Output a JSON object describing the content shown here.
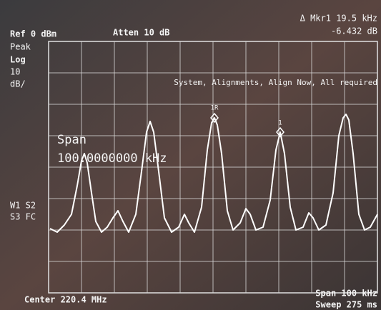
{
  "header": {
    "ref": "Ref 0 dBm",
    "atten": "Atten 10 dB",
    "marker_delta": "Δ Mkr1 19.5 kHz",
    "marker_level": "-6.432 dB"
  },
  "side": {
    "detector": "Peak",
    "scale": "Log",
    "scale_value": "10",
    "scale_unit": "dB/",
    "trace_state_1": "W1 S2",
    "trace_state_2": "S3 FC"
  },
  "message": "System, Alignments, Align Now, All required",
  "span_entry": {
    "label": "Span",
    "value": "100.0000000 kHz"
  },
  "markers": [
    "1R",
    "1"
  ],
  "footer": {
    "center": "Center 220.4 MHz",
    "span": "Span 100 kHz",
    "sweep": "Sweep 275 ms"
  }
}
